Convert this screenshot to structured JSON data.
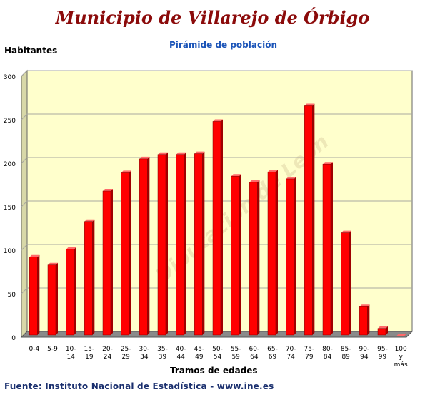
{
  "title": "Municipio de Villarejo de Órbigo",
  "subtitle": "Pirámide de población",
  "source": "Fuente: Instituto Nacional de Estadística - www.ine.es",
  "watermark": "Diputación de León",
  "colors": {
    "bar": "#ff0000",
    "bar_side": "#a00000",
    "bar_top": "#ff6a6a",
    "plot_background": "#ffffcc",
    "title": "#8b0a0a",
    "subtitle": "#1b54b8"
  },
  "chart_data": {
    "type": "bar",
    "title": "Municipio de Villarejo de Órbigo",
    "subtitle": "Pirámide de población",
    "xlabel": "Tramos de edades",
    "ylabel": "Habitantes",
    "ylim": [
      0,
      300
    ],
    "yticks": [
      0,
      50,
      100,
      150,
      200,
      250,
      300
    ],
    "grid": true,
    "categories": [
      [
        "0-4"
      ],
      [
        "5-9"
      ],
      [
        "10-",
        "14"
      ],
      [
        "15-",
        "19"
      ],
      [
        "20-",
        "24"
      ],
      [
        "25-",
        "29"
      ],
      [
        "30-",
        "34"
      ],
      [
        "35-",
        "39"
      ],
      [
        "40-",
        "44"
      ],
      [
        "45-",
        "49"
      ],
      [
        "50-",
        "54"
      ],
      [
        "55-",
        "59"
      ],
      [
        "60-",
        "64"
      ],
      [
        "65-",
        "69"
      ],
      [
        "70-",
        "74"
      ],
      [
        "75-",
        "79"
      ],
      [
        "80-",
        "84"
      ],
      [
        "85-",
        "89"
      ],
      [
        "90-",
        "94"
      ],
      [
        "95-",
        "99"
      ],
      [
        "100",
        "y",
        "más"
      ]
    ],
    "values": [
      92,
      83,
      101,
      133,
      168,
      189,
      205,
      210,
      210,
      211,
      248,
      185,
      178,
      190,
      182,
      266,
      199,
      120,
      35,
      10,
      1
    ]
  }
}
